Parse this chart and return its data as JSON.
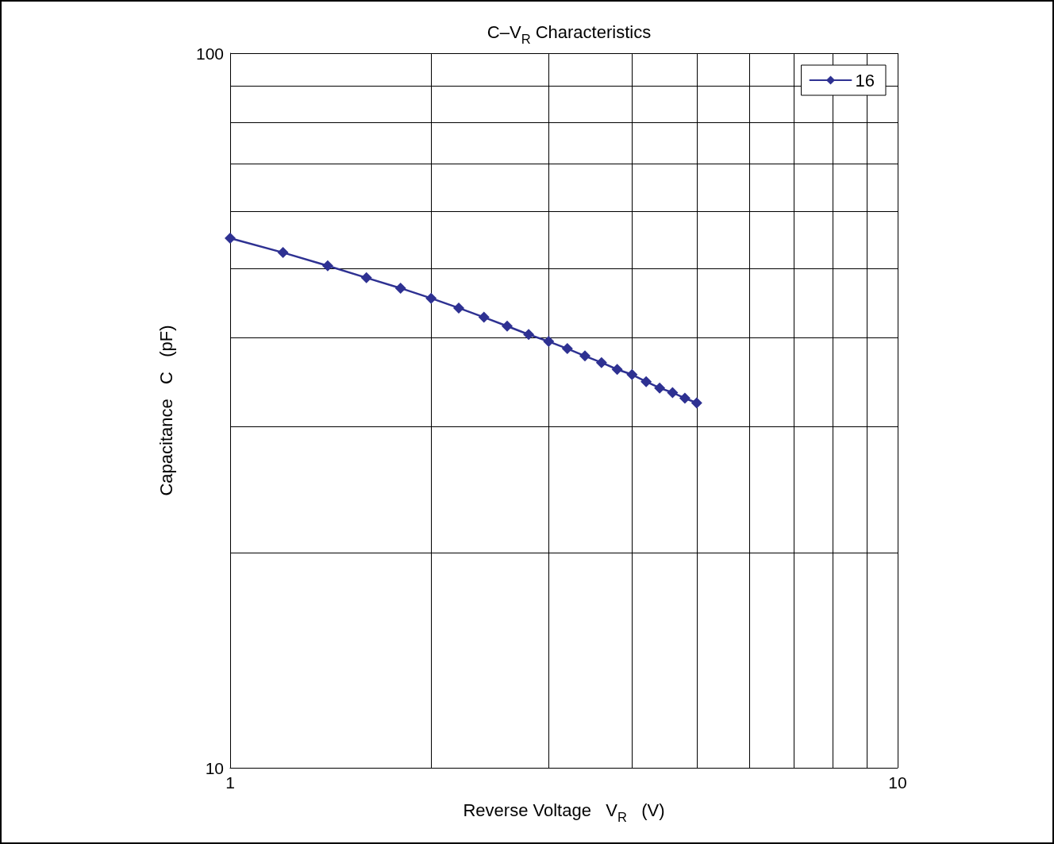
{
  "chart_data": {
    "type": "line",
    "title": "C–V$_{R}$ Characteristics",
    "xlabel": "Reverse Voltage   V$_{R}$   (V)",
    "ylabel": "Capacitance   C   (pF)",
    "x": [
      1,
      1.2,
      1.4,
      1.6,
      1.8,
      2,
      2.2,
      2.4,
      2.6,
      2.8,
      3,
      3.2,
      3.4,
      3.6,
      3.8,
      4,
      4.2,
      4.4,
      4.6,
      4.8,
      5
    ],
    "series": [
      {
        "name": "16",
        "color": "#2e3192",
        "values": [
          55.1,
          52.6,
          50.4,
          48.5,
          46.9,
          45.4,
          44.0,
          42.7,
          41.5,
          40.4,
          39.5,
          38.6,
          37.7,
          36.9,
          36.1,
          35.5,
          34.7,
          34.0,
          33.5,
          32.9,
          32.4
        ]
      }
    ],
    "log": "xy",
    "xlim": [
      1,
      10
    ],
    "ylim": [
      10,
      100
    ],
    "xticks": [
      1,
      {
        "value": 2,
        "label": null
      },
      {
        "value": 3,
        "label": null
      },
      {
        "value": 4,
        "label": null
      },
      {
        "value": 5,
        "label": null
      },
      {
        "value": 6,
        "label": null
      },
      {
        "value": 7,
        "label": null
      },
      {
        "value": 8,
        "label": null
      },
      {
        "value": 9,
        "label": null
      },
      10
    ],
    "yticks": [
      10,
      {
        "value": 20,
        "label": null
      },
      {
        "value": 30,
        "label": null
      },
      {
        "value": 40,
        "label": null
      },
      {
        "value": 50,
        "label": null
      },
      {
        "value": 60,
        "label": null
      },
      {
        "value": 70,
        "label": null
      },
      {
        "value": 80,
        "label": null
      },
      {
        "value": 90,
        "label": null
      },
      100
    ],
    "grid": true,
    "legend": "top right",
    "marker": "diamond",
    "line_style": "solid"
  }
}
